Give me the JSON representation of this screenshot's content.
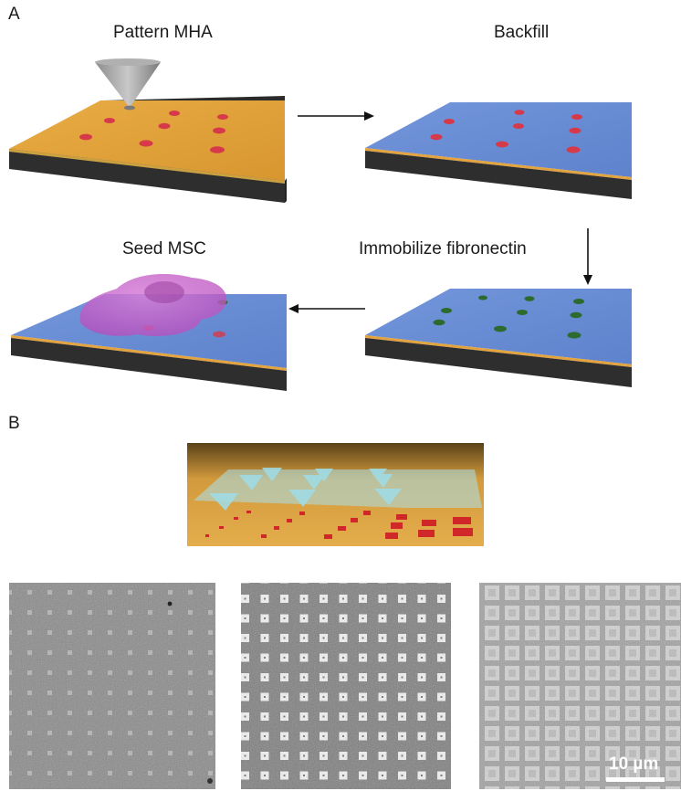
{
  "panel_a": {
    "letter": "A",
    "steps": [
      {
        "label": "Pattern MHA",
        "surface_color": "#e3a33e",
        "dot_color": "#d63a4a"
      },
      {
        "label": "Backfill",
        "surface_color": "#6b8fd6",
        "dot_color": "#d63a4a"
      },
      {
        "label": "Immobilize fibronectin",
        "surface_color": "#6b8fd6",
        "dot_color": "#2d6a2f"
      },
      {
        "label": "Seed MSC",
        "surface_color": "#6b8fd6",
        "dot_color": "#d63a4a",
        "cell_color": "#c560c8"
      }
    ],
    "arrows": [
      "right",
      "down",
      "left"
    ],
    "substrate_color": "#2e2e2e",
    "edge_color": "#e3a33e"
  },
  "panel_b": {
    "letter": "B",
    "render": {
      "surface_color": "#e0a640",
      "pen_color": "#9fdde8",
      "feature_color": "#d02828"
    },
    "sem_images": [
      {
        "name": "sparse-dots"
      },
      {
        "name": "square-array"
      },
      {
        "name": "dense-squares"
      }
    ],
    "scale_bar": {
      "label": "10 µm"
    }
  }
}
